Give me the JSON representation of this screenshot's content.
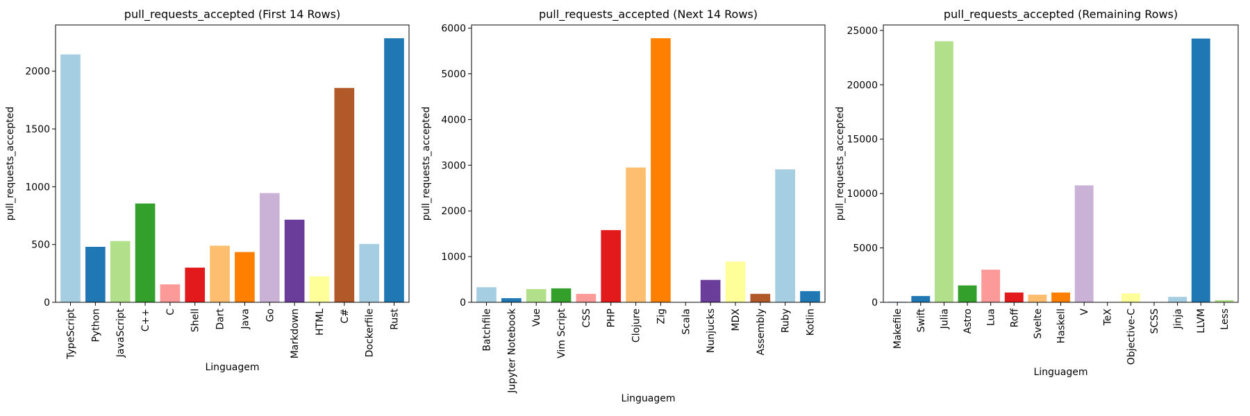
{
  "chart_data": [
    {
      "type": "bar",
      "title": "pull_requests_accepted (First 14 Rows)",
      "xlabel": "Linguagem",
      "ylabel": "pull_requests_accepted",
      "categories": [
        "TypeScript",
        "Python",
        "JavaScript",
        "C++",
        "C",
        "Shell",
        "Dart",
        "Java",
        "Go",
        "Markdown",
        "HTML",
        "C#",
        "Dockerfile",
        "Rust"
      ],
      "values": [
        2145,
        480,
        530,
        855,
        155,
        300,
        490,
        435,
        945,
        715,
        225,
        1855,
        505,
        2285
      ],
      "yticks": [
        0,
        500,
        1000,
        1500,
        2000
      ],
      "ylim": [
        0,
        2400
      ],
      "grid": false
    },
    {
      "type": "bar",
      "title": "pull_requests_accepted (Next 14 Rows)",
      "xlabel": "Linguagem",
      "ylabel": "pull_requests_accepted",
      "categories": [
        "Batchfile",
        "Jupyter Notebook",
        "Vue",
        "Vim Script",
        "CSS",
        "PHP",
        "Clojure",
        "Zig",
        "Scala",
        "Nunjucks",
        "MDX",
        "Assembly",
        "Ruby",
        "Kotlin"
      ],
      "values": [
        330,
        90,
        290,
        305,
        185,
        1580,
        2950,
        5780,
        0,
        490,
        890,
        185,
        2910,
        245
      ],
      "yticks": [
        0,
        1000,
        2000,
        3000,
        4000,
        5000,
        6000
      ],
      "ylim": [
        0,
        6070
      ],
      "grid": false
    },
    {
      "type": "bar",
      "title": "pull_requests_accepted (Remaining Rows)",
      "xlabel": "Linguagem",
      "ylabel": "pull_requests_accepted",
      "categories": [
        "Makefile",
        "Swift",
        "Julia",
        "Astro",
        "Lua",
        "Roff",
        "Svelte",
        "Haskell",
        "V",
        "TeX",
        "Objective-C",
        "SCSS",
        "Jinja",
        "LLVM",
        "Less"
      ],
      "values": [
        60,
        580,
        24000,
        1550,
        3000,
        900,
        700,
        900,
        10750,
        0,
        820,
        0,
        500,
        24250,
        200
      ],
      "yticks": [
        0,
        5000,
        10000,
        15000,
        20000,
        25000
      ],
      "ylim": [
        0,
        25500
      ],
      "grid": false
    }
  ],
  "palette": [
    "#a6cee3",
    "#1f78b4",
    "#b2df8a",
    "#33a02c",
    "#fb9a99",
    "#e31a1c",
    "#fdbf6f",
    "#ff7f00",
    "#cab2d6",
    "#6a3d9a",
    "#ffff99",
    "#b15928"
  ]
}
